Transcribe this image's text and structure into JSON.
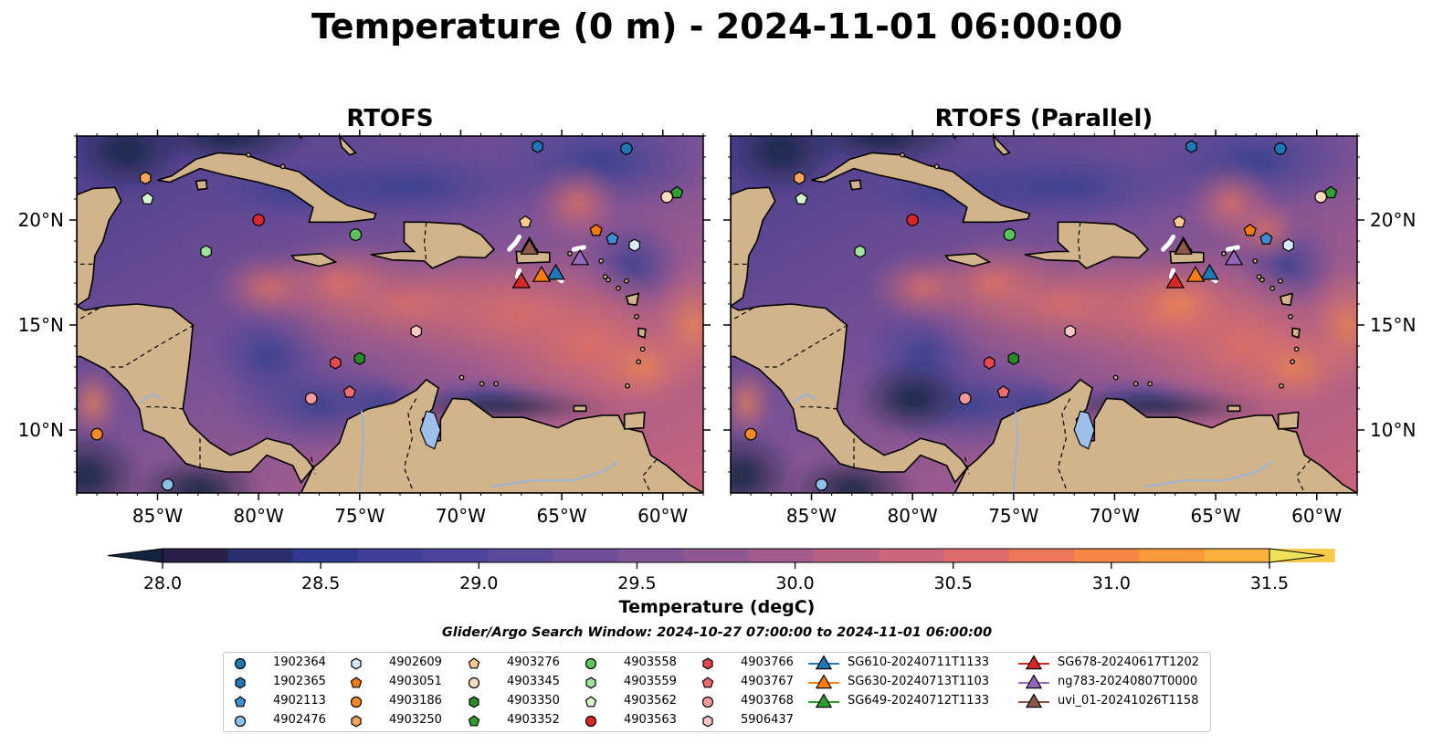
{
  "figure": {
    "title": "Temperature (0 m) - 2024-11-01 06:00:00",
    "search_window": "Glider/Argo Search Window: 2024-10-27 07:00:00 to 2024-11-01 06:00:00"
  },
  "panels": [
    {
      "title": "RTOFS"
    },
    {
      "title": "RTOFS (Parallel)"
    }
  ],
  "axes": {
    "lon_ticks": [
      "85°W",
      "80°W",
      "75°W",
      "70°W",
      "65°W",
      "60°W"
    ],
    "lon_values": [
      -85,
      -80,
      -75,
      -70,
      -65,
      -60
    ],
    "lat_ticks": [
      "10°N",
      "15°N",
      "20°N"
    ],
    "lat_values": [
      10,
      15,
      20
    ],
    "lon_range": [
      -89,
      -58
    ],
    "lat_range": [
      7,
      24
    ]
  },
  "colorbar": {
    "label": "Temperature (degC)",
    "range": [
      28.0,
      31.5
    ],
    "ticks": [
      "28.0",
      "28.5",
      "29.0",
      "29.5",
      "30.0",
      "30.5",
      "31.0",
      "31.5"
    ],
    "colors": [
      "#2a1f4a",
      "#2a2f6e",
      "#31388e",
      "#3f3e99",
      "#4f449c",
      "#5e4a9c",
      "#6f4f9a",
      "#7f5496",
      "#8f5892",
      "#a35d8d",
      "#b86185",
      "#cc667c",
      "#df6c6d",
      "#ee7659",
      "#f78647",
      "#fb9b3c",
      "#fbb23f",
      "#f6cb4b",
      "#eee35b"
    ],
    "extend": "both"
  },
  "legend": {
    "argo": [
      {
        "name": "1902364",
        "marker": "circle",
        "color": "#1f77b4"
      },
      {
        "name": "1902365",
        "marker": "hexagon",
        "color": "#1f77b4"
      },
      {
        "name": "4902113",
        "marker": "pentagon",
        "color": "#3f8fd6"
      },
      {
        "name": "4902476",
        "marker": "circle",
        "color": "#8ec1ea"
      },
      {
        "name": "4902609",
        "marker": "hexagon",
        "color": "#d4ecfa"
      },
      {
        "name": "4903051",
        "marker": "pentagon",
        "color": "#f17a0c"
      },
      {
        "name": "4903186",
        "marker": "circle",
        "color": "#f78a25"
      },
      {
        "name": "4903250",
        "marker": "hexagon",
        "color": "#f8a45a"
      },
      {
        "name": "4903276",
        "marker": "pentagon",
        "color": "#fbc98f"
      },
      {
        "name": "4903345",
        "marker": "circle",
        "color": "#fbdcbd"
      },
      {
        "name": "4903350",
        "marker": "hexagon",
        "color": "#2a8a2a"
      },
      {
        "name": "4903352",
        "marker": "pentagon",
        "color": "#2fa02f"
      },
      {
        "name": "4903558",
        "marker": "circle",
        "color": "#5cc45c"
      },
      {
        "name": "4903559",
        "marker": "hexagon",
        "color": "#9de29d"
      },
      {
        "name": "4903562",
        "marker": "pentagon",
        "color": "#d6f5cf"
      },
      {
        "name": "4903563",
        "marker": "circle",
        "color": "#d62728"
      },
      {
        "name": "4903766",
        "marker": "hexagon",
        "color": "#e3484a"
      },
      {
        "name": "4903767",
        "marker": "pentagon",
        "color": "#ef6a6e"
      },
      {
        "name": "4903768",
        "marker": "circle",
        "color": "#f39a9b"
      },
      {
        "name": "5906437",
        "marker": "hexagon",
        "color": "#fbc7c8"
      }
    ],
    "gliders": [
      {
        "name": "SG610-20240711T1133",
        "color": "#1f77b4"
      },
      {
        "name": "SG630-20240713T1103",
        "color": "#ff7f0e"
      },
      {
        "name": "SG649-20240712T1133",
        "color": "#2ca02c"
      },
      {
        "name": "SG678-20240617T1202",
        "color": "#d62728"
      },
      {
        "name": "ng783-20240807T0000",
        "color": "#9467bd"
      },
      {
        "name": "uvi_01-20241026T1158",
        "color": "#8c564b"
      }
    ]
  },
  "map_data": {
    "land_color": "#d2b48c",
    "lake_color": "#9fc0e8",
    "argo_positions": [
      {
        "name": "1902364",
        "lon": -61.8,
        "lat": 23.4
      },
      {
        "name": "1902365",
        "lon": -66.2,
        "lat": 23.5
      },
      {
        "name": "4902113",
        "lon": -62.5,
        "lat": 19.1
      },
      {
        "name": "4902476",
        "lon": -84.5,
        "lat": 7.4
      },
      {
        "name": "4902609",
        "lon": -61.4,
        "lat": 18.8
      },
      {
        "name": "4903051",
        "lon": -63.3,
        "lat": 19.5
      },
      {
        "name": "4903186",
        "lon": -88.0,
        "lat": 9.8
      },
      {
        "name": "4903250",
        "lon": -85.6,
        "lat": 22.0
      },
      {
        "name": "4903276",
        "lon": -66.8,
        "lat": 19.9
      },
      {
        "name": "4903345",
        "lon": -59.8,
        "lat": 21.1
      },
      {
        "name": "4903350",
        "lon": -75.0,
        "lat": 13.4
      },
      {
        "name": "4903352",
        "lon": -59.3,
        "lat": 21.3
      },
      {
        "name": "4903558",
        "lon": -75.2,
        "lat": 19.3
      },
      {
        "name": "4903559",
        "lon": -82.6,
        "lat": 18.5
      },
      {
        "name": "4903562",
        "lon": -85.5,
        "lat": 21.0
      },
      {
        "name": "4903563",
        "lon": -80.0,
        "lat": 20.0
      },
      {
        "name": "4903766",
        "lon": -76.2,
        "lat": 13.2
      },
      {
        "name": "4903767",
        "lon": -75.5,
        "lat": 11.8
      },
      {
        "name": "4903768",
        "lon": -77.4,
        "lat": 11.5
      },
      {
        "name": "5906437",
        "lon": -72.2,
        "lat": 14.7
      }
    ],
    "glider_positions": [
      {
        "name": "SG610-20240711T1133",
        "lon": -65.3,
        "lat": 17.5
      },
      {
        "name": "SG630-20240713T1103",
        "lon": -66.0,
        "lat": 17.4
      },
      {
        "name": "SG649-20240712T1133",
        "lon": -66.6,
        "lat": 18.8
      },
      {
        "name": "SG678-20240617T1202",
        "lon": -67.0,
        "lat": 17.1
      },
      {
        "name": "ng783-20240807T0000",
        "lon": -64.1,
        "lat": 18.2
      },
      {
        "name": "uvi_01-20241026T1158",
        "lon": -66.6,
        "lat": 18.7
      }
    ]
  }
}
